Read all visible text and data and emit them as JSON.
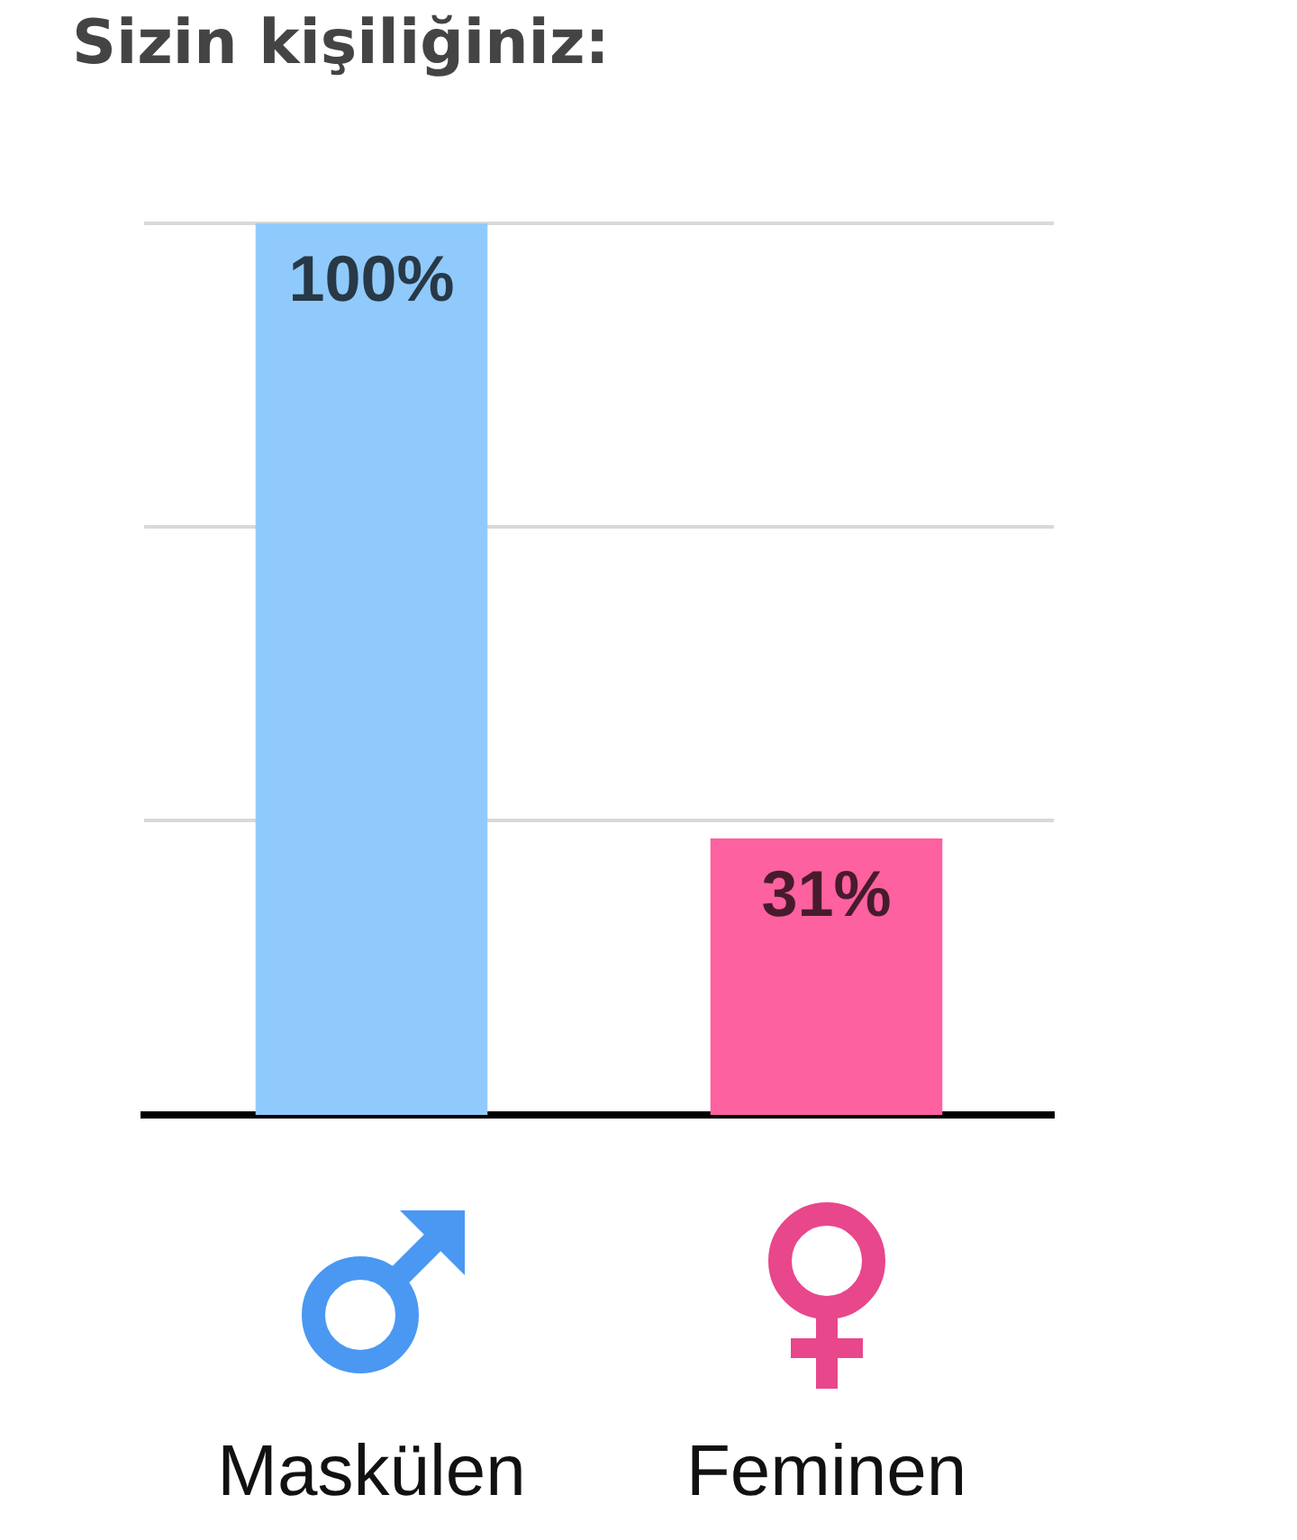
{
  "chart_data": {
    "type": "bar",
    "title": "Sizin kişiliğiniz:",
    "categories": [
      "Maskülen",
      "Feminen"
    ],
    "values": [
      100,
      31
    ],
    "colors": [
      "#90cafc",
      "#fd619f"
    ],
    "value_labels": [
      "100%",
      "31%"
    ],
    "ylim": [
      0,
      100
    ],
    "yticks": [
      {
        "value": 33,
        "label": null
      },
      {
        "value": 66,
        "label": null
      },
      {
        "value": 100,
        "label": null
      }
    ],
    "grid": "y",
    "tick_labels": "x"
  }
}
